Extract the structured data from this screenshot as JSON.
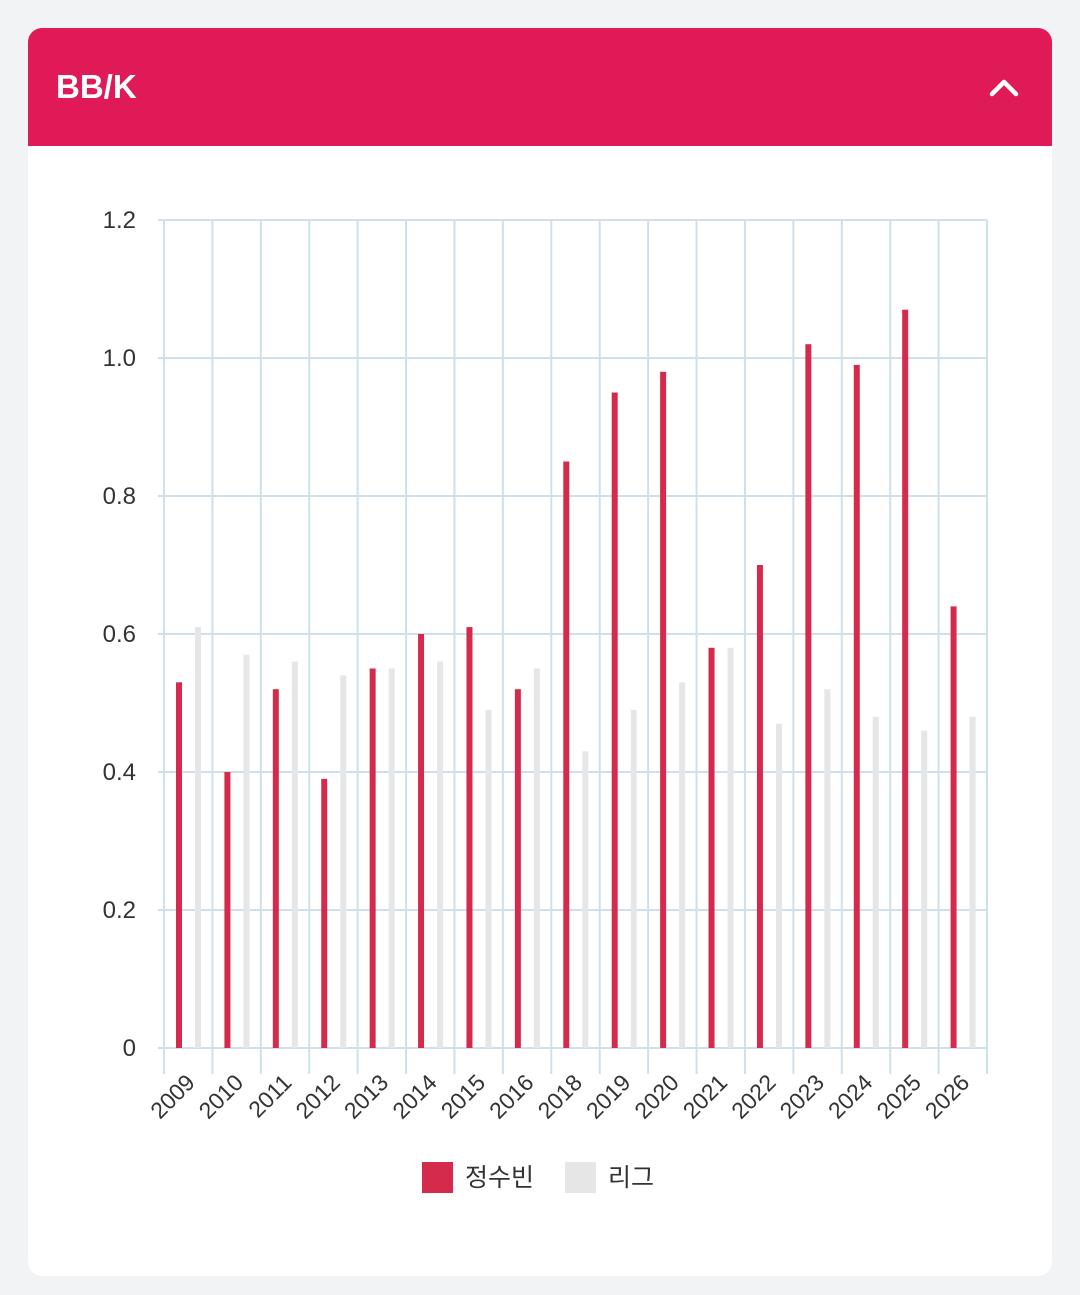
{
  "panel": {
    "title": "BB/K",
    "toggle_icon": "chevron-up-icon"
  },
  "colors": {
    "header": "#e01a57",
    "player": "#d42b4c",
    "league": "#e6e6e6",
    "grid": "#cfe0ea"
  },
  "chart_data": {
    "type": "bar",
    "title": "BB/K",
    "categories": [
      "2009",
      "2010",
      "2011",
      "2012",
      "2013",
      "2014",
      "2015",
      "2016",
      "2018",
      "2019",
      "2020",
      "2021",
      "2022",
      "2023",
      "2024",
      "2025",
      "2026"
    ],
    "series": [
      {
        "name": "정수빈",
        "values": [
          0.53,
          0.4,
          0.52,
          0.39,
          0.55,
          0.6,
          0.61,
          0.52,
          0.85,
          0.95,
          0.98,
          0.58,
          0.7,
          1.02,
          0.99,
          1.07,
          0.64
        ]
      },
      {
        "name": "리그",
        "values": [
          0.61,
          0.57,
          0.56,
          0.54,
          0.55,
          0.56,
          0.49,
          0.55,
          0.43,
          0.49,
          0.53,
          0.58,
          0.47,
          0.52,
          0.48,
          0.46,
          0.48
        ]
      }
    ],
    "ylim": [
      0,
      1.2
    ],
    "yticks": [
      "0",
      "0.2",
      "0.4",
      "0.6",
      "0.8",
      "1.0",
      "1.2"
    ],
    "grid": true,
    "legend_position": "bottom-center"
  }
}
